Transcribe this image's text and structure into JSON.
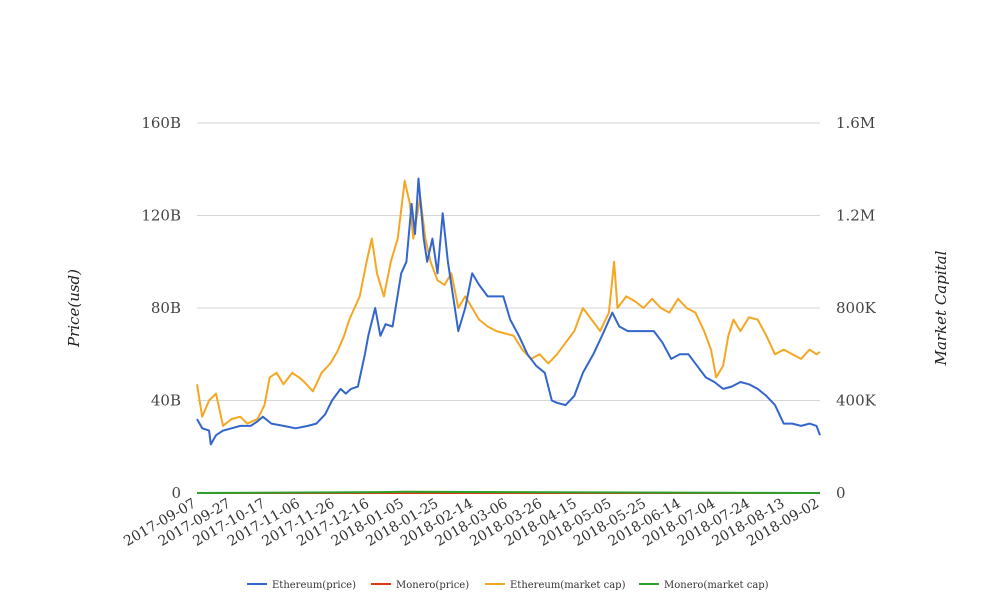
{
  "chart_data": {
    "type": "line",
    "title": "",
    "ylabel_left": "Price(usd)",
    "ylabel_right": "Market Capital",
    "ylim_left": [
      0,
      160000000000
    ],
    "ylim_right": [
      0,
      1600000
    ],
    "yticks_left": [
      "0",
      "40B",
      "80B",
      "120B",
      "160B"
    ],
    "yticks_right": [
      "0",
      "400K",
      "800K",
      "1.2M",
      "1.6M"
    ],
    "grid": true,
    "legend_position": "bottom",
    "x_ticks": [
      "2017-09-07",
      "2017-09-27",
      "2017-10-17",
      "2017-11-06",
      "2017-11-26",
      "2017-12-16",
      "2018-01-05",
      "2018-01-25",
      "2018-02-14",
      "2018-03-06",
      "2018-03-26",
      "2018-04-15",
      "2018-05-05",
      "2018-05-25",
      "2018-06-14",
      "2018-07-04",
      "2018-07-24",
      "2018-08-13",
      "2018-09-02"
    ],
    "x_start": "2017-09-07",
    "x_end": "2018-09-02",
    "series": [
      {
        "name": "Ethereum(price)",
        "axis": "left",
        "color": "#3366cc",
        "points": [
          [
            "2017-09-07",
            32000000000.0
          ],
          [
            "2017-09-10",
            28000000000.0
          ],
          [
            "2017-09-14",
            27000000000.0
          ],
          [
            "2017-09-15",
            21000000000.0
          ],
          [
            "2017-09-18",
            25000000000.0
          ],
          [
            "2017-09-22",
            27000000000.0
          ],
          [
            "2017-09-27",
            28000000000.0
          ],
          [
            "2017-10-02",
            29000000000.0
          ],
          [
            "2017-10-08",
            29000000000.0
          ],
          [
            "2017-10-12",
            31000000000.0
          ],
          [
            "2017-10-15",
            33000000000.0
          ],
          [
            "2017-10-20",
            30000000000.0
          ],
          [
            "2017-10-27",
            29000000000.0
          ],
          [
            "2017-11-03",
            28000000000.0
          ],
          [
            "2017-11-10",
            29000000000.0
          ],
          [
            "2017-11-15",
            30000000000.0
          ],
          [
            "2017-11-20",
            34000000000.0
          ],
          [
            "2017-11-24",
            40000000000.0
          ],
          [
            "2017-11-29",
            45000000000.0
          ],
          [
            "2017-12-02",
            43000000000.0
          ],
          [
            "2017-12-05",
            45000000000.0
          ],
          [
            "2017-12-09",
            46000000000.0
          ],
          [
            "2017-12-13",
            60000000000.0
          ],
          [
            "2017-12-15",
            68000000000.0
          ],
          [
            "2017-12-19",
            80000000000.0
          ],
          [
            "2017-12-22",
            68000000000.0
          ],
          [
            "2017-12-25",
            73000000000.0
          ],
          [
            "2017-12-29",
            72000000000.0
          ],
          [
            "2018-01-03",
            95000000000.0
          ],
          [
            "2018-01-06",
            100000000000.0
          ],
          [
            "2018-01-09",
            125000000000.0
          ],
          [
            "2018-01-11",
            112000000000.0
          ],
          [
            "2018-01-13",
            136000000000.0
          ],
          [
            "2018-01-16",
            110000000000.0
          ],
          [
            "2018-01-18",
            100000000000.0
          ],
          [
            "2018-01-21",
            110000000000.0
          ],
          [
            "2018-01-24",
            95000000000.0
          ],
          [
            "2018-01-27",
            121000000000.0
          ],
          [
            "2018-01-30",
            100000000000.0
          ],
          [
            "2018-02-02",
            85000000000.0
          ],
          [
            "2018-02-05",
            70000000000.0
          ],
          [
            "2018-02-09",
            80000000000.0
          ],
          [
            "2018-02-13",
            95000000000.0
          ],
          [
            "2018-02-17",
            90000000000.0
          ],
          [
            "2018-02-22",
            85000000000.0
          ],
          [
            "2018-02-27",
            85000000000.0
          ],
          [
            "2018-03-03",
            85000000000.0
          ],
          [
            "2018-03-07",
            75000000000.0
          ],
          [
            "2018-03-12",
            68000000000.0
          ],
          [
            "2018-03-17",
            60000000000.0
          ],
          [
            "2018-03-22",
            55000000000.0
          ],
          [
            "2018-03-27",
            52000000000.0
          ],
          [
            "2018-03-31",
            40000000000.0
          ],
          [
            "2018-04-03",
            39000000000.0
          ],
          [
            "2018-04-08",
            38000000000.0
          ],
          [
            "2018-04-13",
            42000000000.0
          ],
          [
            "2018-04-18",
            52000000000.0
          ],
          [
            "2018-04-24",
            60000000000.0
          ],
          [
            "2018-04-29",
            68000000000.0
          ],
          [
            "2018-05-05",
            78000000000.0
          ],
          [
            "2018-05-09",
            72000000000.0
          ],
          [
            "2018-05-14",
            70000000000.0
          ],
          [
            "2018-05-19",
            70000000000.0
          ],
          [
            "2018-05-24",
            70000000000.0
          ],
          [
            "2018-05-29",
            70000000000.0
          ],
          [
            "2018-06-03",
            65000000000.0
          ],
          [
            "2018-06-08",
            58000000000.0
          ],
          [
            "2018-06-13",
            60000000000.0
          ],
          [
            "2018-06-18",
            60000000000.0
          ],
          [
            "2018-06-23",
            55000000000.0
          ],
          [
            "2018-06-28",
            50000000000.0
          ],
          [
            "2018-07-03",
            48000000000.0
          ],
          [
            "2018-07-08",
            45000000000.0
          ],
          [
            "2018-07-13",
            46000000000.0
          ],
          [
            "2018-07-18",
            48000000000.0
          ],
          [
            "2018-07-23",
            47000000000.0
          ],
          [
            "2018-07-28",
            45000000000.0
          ],
          [
            "2018-08-02",
            42000000000.0
          ],
          [
            "2018-08-07",
            38000000000.0
          ],
          [
            "2018-08-12",
            30000000000.0
          ],
          [
            "2018-08-17",
            30000000000.0
          ],
          [
            "2018-08-22",
            29000000000.0
          ],
          [
            "2018-08-27",
            30000000000.0
          ],
          [
            "2018-08-31",
            29000000000.0
          ],
          [
            "2018-09-02",
            25000000000.0
          ]
        ]
      },
      {
        "name": "Monero(price)",
        "axis": "left",
        "color": "#dc3912",
        "points": [
          [
            "2017-09-07",
            0
          ],
          [
            "2018-09-02",
            0
          ]
        ]
      },
      {
        "name": "Ethereum(market cap)",
        "axis": "right",
        "color": "#f5a623",
        "points": [
          [
            "2017-09-07",
            470000
          ],
          [
            "2017-09-10",
            330000
          ],
          [
            "2017-09-14",
            400000
          ],
          [
            "2017-09-18",
            430000
          ],
          [
            "2017-09-22",
            290000
          ],
          [
            "2017-09-27",
            320000
          ],
          [
            "2017-10-02",
            330000
          ],
          [
            "2017-10-06",
            300000
          ],
          [
            "2017-10-12",
            320000
          ],
          [
            "2017-10-16",
            380000
          ],
          [
            "2017-10-19",
            500000
          ],
          [
            "2017-10-23",
            520000
          ],
          [
            "2017-10-27",
            470000
          ],
          [
            "2017-11-01",
            520000
          ],
          [
            "2017-11-05",
            500000
          ],
          [
            "2017-11-08",
            480000
          ],
          [
            "2017-11-13",
            440000
          ],
          [
            "2017-11-18",
            520000
          ],
          [
            "2017-11-23",
            560000
          ],
          [
            "2017-11-27",
            610000
          ],
          [
            "2017-12-01",
            680000
          ],
          [
            "2017-12-04",
            750000
          ],
          [
            "2017-12-07",
            800000
          ],
          [
            "2017-12-10",
            850000
          ],
          [
            "2017-12-14",
            1000000
          ],
          [
            "2017-12-17",
            1100000
          ],
          [
            "2017-12-20",
            950000
          ],
          [
            "2017-12-24",
            850000
          ],
          [
            "2017-12-28",
            1000000
          ],
          [
            "2018-01-01",
            1100000
          ],
          [
            "2018-01-05",
            1350000
          ],
          [
            "2018-01-08",
            1250000
          ],
          [
            "2018-01-10",
            1100000
          ],
          [
            "2018-01-14",
            1280000
          ],
          [
            "2018-01-17",
            1100000
          ],
          [
            "2018-01-20",
            1000000
          ],
          [
            "2018-01-24",
            920000
          ],
          [
            "2018-01-28",
            900000
          ],
          [
            "2018-02-01",
            950000
          ],
          [
            "2018-02-05",
            800000
          ],
          [
            "2018-02-09",
            850000
          ],
          [
            "2018-02-13",
            800000
          ],
          [
            "2018-02-17",
            750000
          ],
          [
            "2018-02-22",
            720000
          ],
          [
            "2018-02-27",
            700000
          ],
          [
            "2018-03-04",
            690000
          ],
          [
            "2018-03-09",
            680000
          ],
          [
            "2018-03-14",
            620000
          ],
          [
            "2018-03-19",
            580000
          ],
          [
            "2018-03-24",
            600000
          ],
          [
            "2018-03-29",
            560000
          ],
          [
            "2018-04-03",
            600000
          ],
          [
            "2018-04-08",
            650000
          ],
          [
            "2018-04-13",
            700000
          ],
          [
            "2018-04-18",
            800000
          ],
          [
            "2018-04-23",
            750000
          ],
          [
            "2018-04-28",
            700000
          ],
          [
            "2018-05-03",
            780000
          ],
          [
            "2018-05-06",
            1000000
          ],
          [
            "2018-05-08",
            800000
          ],
          [
            "2018-05-13",
            850000
          ],
          [
            "2018-05-18",
            830000
          ],
          [
            "2018-05-23",
            800000
          ],
          [
            "2018-05-28",
            840000
          ],
          [
            "2018-06-02",
            800000
          ],
          [
            "2018-06-07",
            780000
          ],
          [
            "2018-06-12",
            840000
          ],
          [
            "2018-06-17",
            800000
          ],
          [
            "2018-06-22",
            780000
          ],
          [
            "2018-06-27",
            700000
          ],
          [
            "2018-07-01",
            620000
          ],
          [
            "2018-07-04",
            500000
          ],
          [
            "2018-07-08",
            550000
          ],
          [
            "2018-07-11",
            680000
          ],
          [
            "2018-07-14",
            750000
          ],
          [
            "2018-07-18",
            700000
          ],
          [
            "2018-07-23",
            760000
          ],
          [
            "2018-07-28",
            750000
          ],
          [
            "2018-08-02",
            680000
          ],
          [
            "2018-08-07",
            600000
          ],
          [
            "2018-08-12",
            620000
          ],
          [
            "2018-08-17",
            600000
          ],
          [
            "2018-08-22",
            580000
          ],
          [
            "2018-08-27",
            620000
          ],
          [
            "2018-08-31",
            600000
          ],
          [
            "2018-09-02",
            610000
          ]
        ]
      },
      {
        "name": "Monero(market cap)",
        "axis": "right",
        "color": "#2ca02c",
        "points": [
          [
            "2017-09-07",
            0
          ],
          [
            "2017-12-22",
            4000
          ],
          [
            "2018-01-05",
            5000
          ],
          [
            "2018-09-02",
            0
          ]
        ]
      }
    ]
  }
}
